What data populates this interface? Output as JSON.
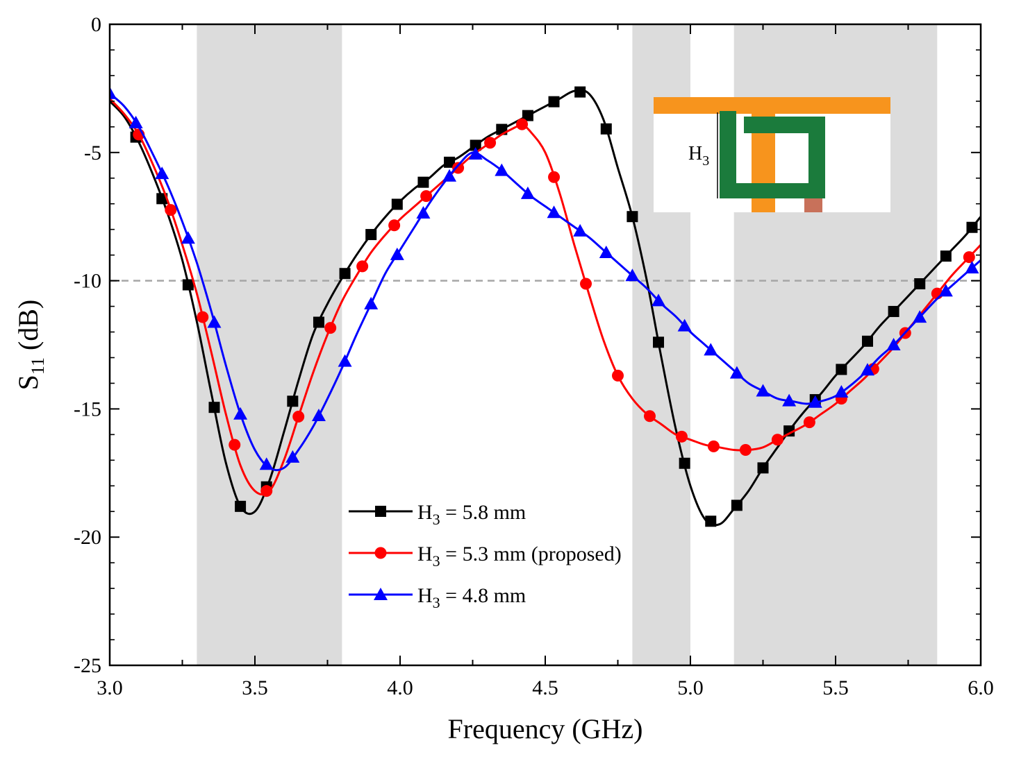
{
  "chart_data": {
    "type": "line",
    "title": "",
    "xlabel": "Frequency (GHz)",
    "ylabel": {
      "base": "S",
      "sub": "11",
      "unit": " (dB)"
    },
    "xlim": [
      3.0,
      6.0
    ],
    "ylim": [
      -25,
      0
    ],
    "xticks": [
      3.0,
      3.5,
      4.0,
      4.5,
      5.0,
      5.5,
      6.0
    ],
    "xtick_labels": [
      "3.0",
      "3.5",
      "4.0",
      "4.5",
      "5.0",
      "5.5",
      "6.0"
    ],
    "yticks": [
      0,
      -5,
      -10,
      -15,
      -20,
      -25
    ],
    "ytick_labels": [
      "0",
      "-5",
      "-10",
      "-15",
      "-20",
      "-25"
    ],
    "grid": false,
    "reference_line": {
      "y": -10,
      "style": "dashed",
      "color": "#a6a6a6"
    },
    "shaded_bands": [
      [
        3.3,
        3.8
      ],
      [
        4.8,
        5.0
      ],
      [
        5.15,
        5.85
      ]
    ],
    "shade_color": "#dcdcdc",
    "legend_position": "bottom-center",
    "series": [
      {
        "name": "H3 = 5.8 mm",
        "legend": {
          "base": "H",
          "sub": "3",
          "rest": " = 5.8 mm"
        },
        "color": "#000000",
        "marker": "square",
        "x": [
          3.0,
          3.05,
          3.1,
          3.15,
          3.2,
          3.25,
          3.3,
          3.35,
          3.4,
          3.45,
          3.5,
          3.55,
          3.6,
          3.65,
          3.7,
          3.75,
          3.8,
          3.85,
          3.9,
          3.95,
          4.0,
          4.05,
          4.1,
          4.15,
          4.2,
          4.25,
          4.3,
          4.35,
          4.4,
          4.45,
          4.5,
          4.55,
          4.6,
          4.65,
          4.7,
          4.75,
          4.8,
          4.85,
          4.9,
          4.95,
          5.0,
          5.05,
          5.1,
          5.15,
          5.2,
          5.25,
          5.3,
          5.35,
          5.4,
          5.45,
          5.5,
          5.55,
          5.6,
          5.65,
          5.7,
          5.75,
          5.8,
          5.85,
          5.9,
          5.95,
          6.0
        ],
        "y": [
          -3.0,
          -3.6,
          -4.6,
          -5.9,
          -7.4,
          -9.2,
          -11.6,
          -14.4,
          -17.1,
          -18.8,
          -19.0,
          -17.8,
          -15.9,
          -13.9,
          -12.1,
          -10.9,
          -9.9,
          -9.0,
          -8.2,
          -7.5,
          -6.9,
          -6.4,
          -6.0,
          -5.5,
          -5.2,
          -4.8,
          -4.4,
          -4.1,
          -3.8,
          -3.5,
          -3.2,
          -2.9,
          -2.6,
          -2.7,
          -3.7,
          -5.6,
          -7.5,
          -10.0,
          -13.0,
          -15.8,
          -18.0,
          -19.3,
          -19.5,
          -18.9,
          -18.2,
          -17.3,
          -16.5,
          -15.7,
          -15.0,
          -14.4,
          -13.7,
          -13.1,
          -12.5,
          -11.8,
          -11.2,
          -10.6,
          -10.0,
          -9.4,
          -8.8,
          -8.2,
          -7.5
        ],
        "marker_x": [
          3.09,
          3.18,
          3.27,
          3.36,
          3.45,
          3.54,
          3.63,
          3.72,
          3.81,
          3.9,
          3.99,
          4.08,
          4.17,
          4.26,
          4.35,
          4.44,
          4.53,
          4.62,
          4.71,
          4.8,
          4.89,
          4.98,
          5.07,
          5.16,
          5.25,
          5.34,
          5.43,
          5.52,
          5.61,
          5.7,
          5.79,
          5.88,
          5.97
        ]
      },
      {
        "name": "H3 = 5.3 mm (proposed)",
        "legend": {
          "base": "H",
          "sub": "3",
          "rest": " = 5.3 mm (proposed)"
        },
        "color": "#ff0000",
        "marker": "circle",
        "x": [
          3.0,
          3.05,
          3.1,
          3.15,
          3.2,
          3.25,
          3.3,
          3.35,
          3.4,
          3.45,
          3.5,
          3.55,
          3.6,
          3.65,
          3.7,
          3.75,
          3.8,
          3.85,
          3.9,
          3.95,
          4.0,
          4.05,
          4.1,
          4.15,
          4.2,
          4.25,
          4.3,
          4.35,
          4.4,
          4.42,
          4.45,
          4.5,
          4.55,
          4.6,
          4.65,
          4.7,
          4.75,
          4.8,
          4.85,
          4.9,
          4.95,
          5.0,
          5.05,
          5.1,
          5.15,
          5.2,
          5.25,
          5.3,
          5.35,
          5.4,
          5.45,
          5.5,
          5.55,
          5.6,
          5.65,
          5.7,
          5.75,
          5.8,
          5.85,
          5.9,
          5.95,
          6.0
        ],
        "y": [
          -2.9,
          -3.5,
          -4.3,
          -5.5,
          -6.9,
          -8.6,
          -10.5,
          -12.8,
          -15.2,
          -17.2,
          -18.2,
          -18.2,
          -17.0,
          -15.3,
          -13.6,
          -12.1,
          -10.8,
          -9.8,
          -8.9,
          -8.2,
          -7.6,
          -7.1,
          -6.6,
          -6.1,
          -5.6,
          -5.1,
          -4.7,
          -4.3,
          -4.0,
          -3.9,
          -4.2,
          -5.0,
          -6.6,
          -8.6,
          -10.5,
          -12.3,
          -13.7,
          -14.6,
          -15.2,
          -15.6,
          -16.0,
          -16.2,
          -16.4,
          -16.5,
          -16.6,
          -16.6,
          -16.5,
          -16.2,
          -15.9,
          -15.6,
          -15.2,
          -14.8,
          -14.3,
          -13.8,
          -13.2,
          -12.6,
          -11.9,
          -11.2,
          -10.5,
          -9.8,
          -9.2,
          -8.6
        ],
        "marker_x": [
          3.1,
          3.21,
          3.32,
          3.43,
          3.54,
          3.65,
          3.76,
          3.87,
          3.98,
          4.09,
          4.2,
          4.31,
          4.42,
          4.53,
          4.64,
          4.75,
          4.86,
          4.97,
          5.08,
          5.19,
          5.3,
          5.41,
          5.52,
          5.63,
          5.74,
          5.85,
          5.96
        ]
      },
      {
        "name": "H3 = 4.8 mm",
        "legend": {
          "base": "H",
          "sub": "3",
          "rest": " = 4.8 mm"
        },
        "color": "#0000ff",
        "marker": "triangle",
        "x": [
          3.0,
          3.05,
          3.1,
          3.15,
          3.2,
          3.25,
          3.3,
          3.35,
          3.4,
          3.45,
          3.5,
          3.55,
          3.6,
          3.65,
          3.7,
          3.75,
          3.8,
          3.85,
          3.9,
          3.95,
          4.0,
          4.05,
          4.1,
          4.15,
          4.2,
          4.25,
          4.3,
          4.35,
          4.4,
          4.45,
          4.5,
          4.55,
          4.6,
          4.65,
          4.7,
          4.75,
          4.8,
          4.85,
          4.9,
          4.95,
          5.0,
          5.05,
          5.1,
          5.15,
          5.2,
          5.25,
          5.3,
          5.35,
          5.4,
          5.45,
          5.5,
          5.55,
          5.6,
          5.65,
          5.7,
          5.75,
          5.8,
          5.85,
          5.9,
          5.95,
          6.0
        ],
        "y": [
          -2.7,
          -3.2,
          -4.0,
          -5.1,
          -6.3,
          -7.7,
          -9.3,
          -11.2,
          -13.3,
          -15.2,
          -16.6,
          -17.3,
          -17.3,
          -16.6,
          -15.7,
          -14.6,
          -13.4,
          -12.1,
          -10.9,
          -9.7,
          -8.8,
          -7.9,
          -7.0,
          -6.2,
          -5.5,
          -5.0,
          -5.3,
          -5.7,
          -6.2,
          -6.7,
          -7.1,
          -7.5,
          -7.9,
          -8.3,
          -8.8,
          -9.3,
          -9.8,
          -10.3,
          -10.9,
          -11.4,
          -12.0,
          -12.5,
          -13.0,
          -13.5,
          -14.0,
          -14.3,
          -14.6,
          -14.7,
          -14.8,
          -14.7,
          -14.5,
          -14.1,
          -13.6,
          -13.0,
          -12.5,
          -11.9,
          -11.3,
          -10.7,
          -10.2,
          -9.7,
          -9.2
        ],
        "marker_x": [
          3.0,
          3.09,
          3.18,
          3.27,
          3.36,
          3.45,
          3.54,
          3.63,
          3.72,
          3.81,
          3.9,
          3.99,
          4.08,
          4.17,
          4.26,
          4.35,
          4.44,
          4.53,
          4.62,
          4.71,
          4.8,
          4.89,
          4.98,
          5.07,
          5.16,
          5.25,
          5.34,
          5.43,
          5.52,
          5.61,
          5.7,
          5.79,
          5.88,
          5.97
        ]
      }
    ],
    "inset": {
      "label": {
        "base": "H",
        "sub": "3"
      },
      "colors": {
        "feed": "#f7941d",
        "patch": "#1b7b3c",
        "port": "#c8715a"
      }
    }
  }
}
